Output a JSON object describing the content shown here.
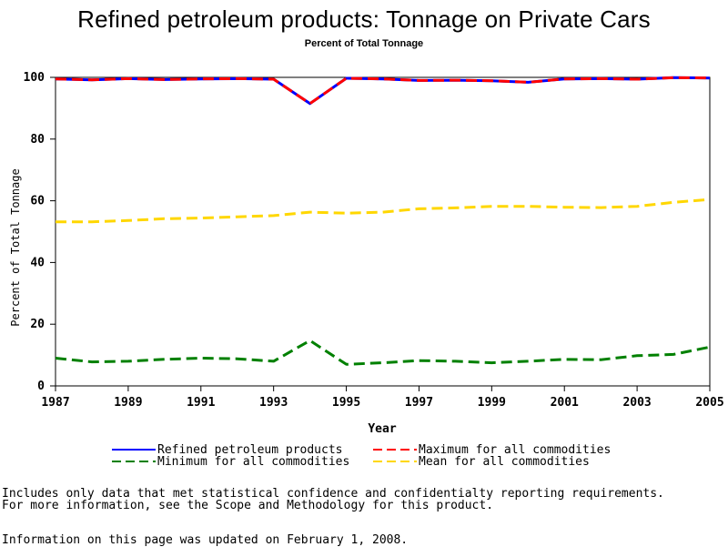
{
  "title": "Refined petroleum products: Tonnage on Private Cars",
  "subtitle": "Percent of Total Tonnage",
  "chart_data": {
    "type": "line",
    "xlabel": "Year",
    "ylabel": "Percent of Total Tonnage",
    "xlim": [
      1987,
      2005
    ],
    "ylim": [
      0,
      100
    ],
    "x_ticks": [
      "1987",
      "1989",
      "1991",
      "1993",
      "1995",
      "1997",
      "1999",
      "2001",
      "2003",
      "2005"
    ],
    "y_ticks": [
      "0",
      "20",
      "40",
      "60",
      "80",
      "100"
    ],
    "grid": false,
    "legend_position": "bottom",
    "x": [
      1987,
      1988,
      1989,
      1990,
      1991,
      1992,
      1993,
      1994,
      1995,
      1996,
      1997,
      1998,
      1999,
      2000,
      2001,
      2002,
      2003,
      2004,
      2005
    ],
    "series": [
      {
        "name": "Refined petroleum products",
        "color": "#0000ff",
        "dash": "solid",
        "values": [
          99.5,
          99.2,
          99.6,
          99.3,
          99.5,
          99.6,
          99.4,
          91.5,
          99.7,
          99.5,
          99.0,
          99.1,
          98.9,
          98.4,
          99.5,
          99.6,
          99.4,
          99.9,
          99.8
        ]
      },
      {
        "name": "Maximum for all commodities",
        "color": "#ff0000",
        "dash": "dashed",
        "values": [
          99.5,
          99.2,
          99.6,
          99.3,
          99.5,
          99.6,
          99.4,
          91.5,
          99.7,
          99.5,
          99.0,
          99.1,
          98.9,
          98.4,
          99.5,
          99.6,
          99.4,
          99.9,
          99.8
        ]
      },
      {
        "name": "Minimum for all commodities",
        "color": "#008000",
        "dash": "dashed",
        "values": [
          9.0,
          7.8,
          8.0,
          8.6,
          9.0,
          8.8,
          8.0,
          14.7,
          7.0,
          7.5,
          8.2,
          8.0,
          7.5,
          8.0,
          8.6,
          8.5,
          9.8,
          10.2,
          12.6
        ]
      },
      {
        "name": "Mean for all commodities",
        "color": "#ffd700",
        "dash": "dashed",
        "values": [
          53.2,
          53.2,
          53.6,
          54.2,
          54.4,
          54.8,
          55.2,
          56.3,
          56.0,
          56.3,
          57.4,
          57.7,
          58.2,
          58.2,
          57.9,
          57.8,
          58.2,
          59.5,
          60.4
        ]
      }
    ]
  },
  "legend": [
    {
      "label": "Refined petroleum products",
      "color": "#0000ff",
      "dash": "solid"
    },
    {
      "label": "Maximum for all commodities",
      "color": "#ff0000",
      "dash": "dashed"
    },
    {
      "label": "Minimum for all commodities",
      "color": "#008000",
      "dash": "dashed"
    },
    {
      "label": "Mean for all commodities",
      "color": "#ffd700",
      "dash": "dashed"
    }
  ],
  "notes": {
    "line1": "Includes only data that met statistical confidence and confidentialty reporting requirements.",
    "line2": "For more information, see the Scope and Methodology for this product.",
    "updated": "Information on this page was updated on February 1, 2008."
  }
}
